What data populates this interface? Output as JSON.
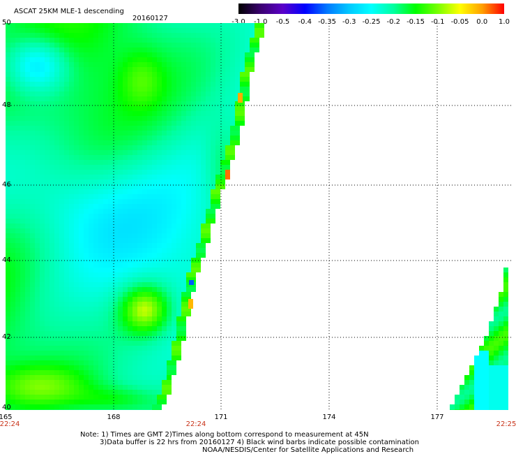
{
  "header": {
    "title": "ASCAT 25KM MLE-1 descending",
    "date": "20160127"
  },
  "colorbar": {
    "labels": [
      "-3.0",
      "-1.0",
      "-0.5",
      "-0.4",
      "-0.35",
      "-0.3",
      "-0.25",
      "-0.2",
      "-0.15",
      "-0.1",
      "-0.05",
      "0.0",
      "1.0"
    ],
    "colors": [
      "#000000",
      "#3a0070",
      "#5a00c8",
      "#0000ff",
      "#0078ff",
      "#00c8ff",
      "#00ffff",
      "#00ffa0",
      "#00ff00",
      "#78ff00",
      "#ffff00",
      "#ffa000",
      "#ff0000"
    ]
  },
  "axes": {
    "lat_labels": [
      "50",
      "48",
      "46",
      "44",
      "42",
      "40"
    ],
    "lon_labels": [
      "165",
      "168",
      "171",
      "174",
      "177"
    ],
    "time_labels": [
      "22:24",
      "22:24",
      "22:25"
    ],
    "lat_range": [
      40,
      50
    ],
    "lon_range": [
      165,
      179.3
    ]
  },
  "notes": {
    "line1": "Note: 1) Times are GMT 2)Times along bottom correspond to measurement at 45N",
    "line2": "3)Data buffer is 22 hrs from 20160127 4) Black wind barbs indicate possible contamination",
    "line3": "NOAA/NESDIS/Center for Satellite Applications and Research"
  }
}
